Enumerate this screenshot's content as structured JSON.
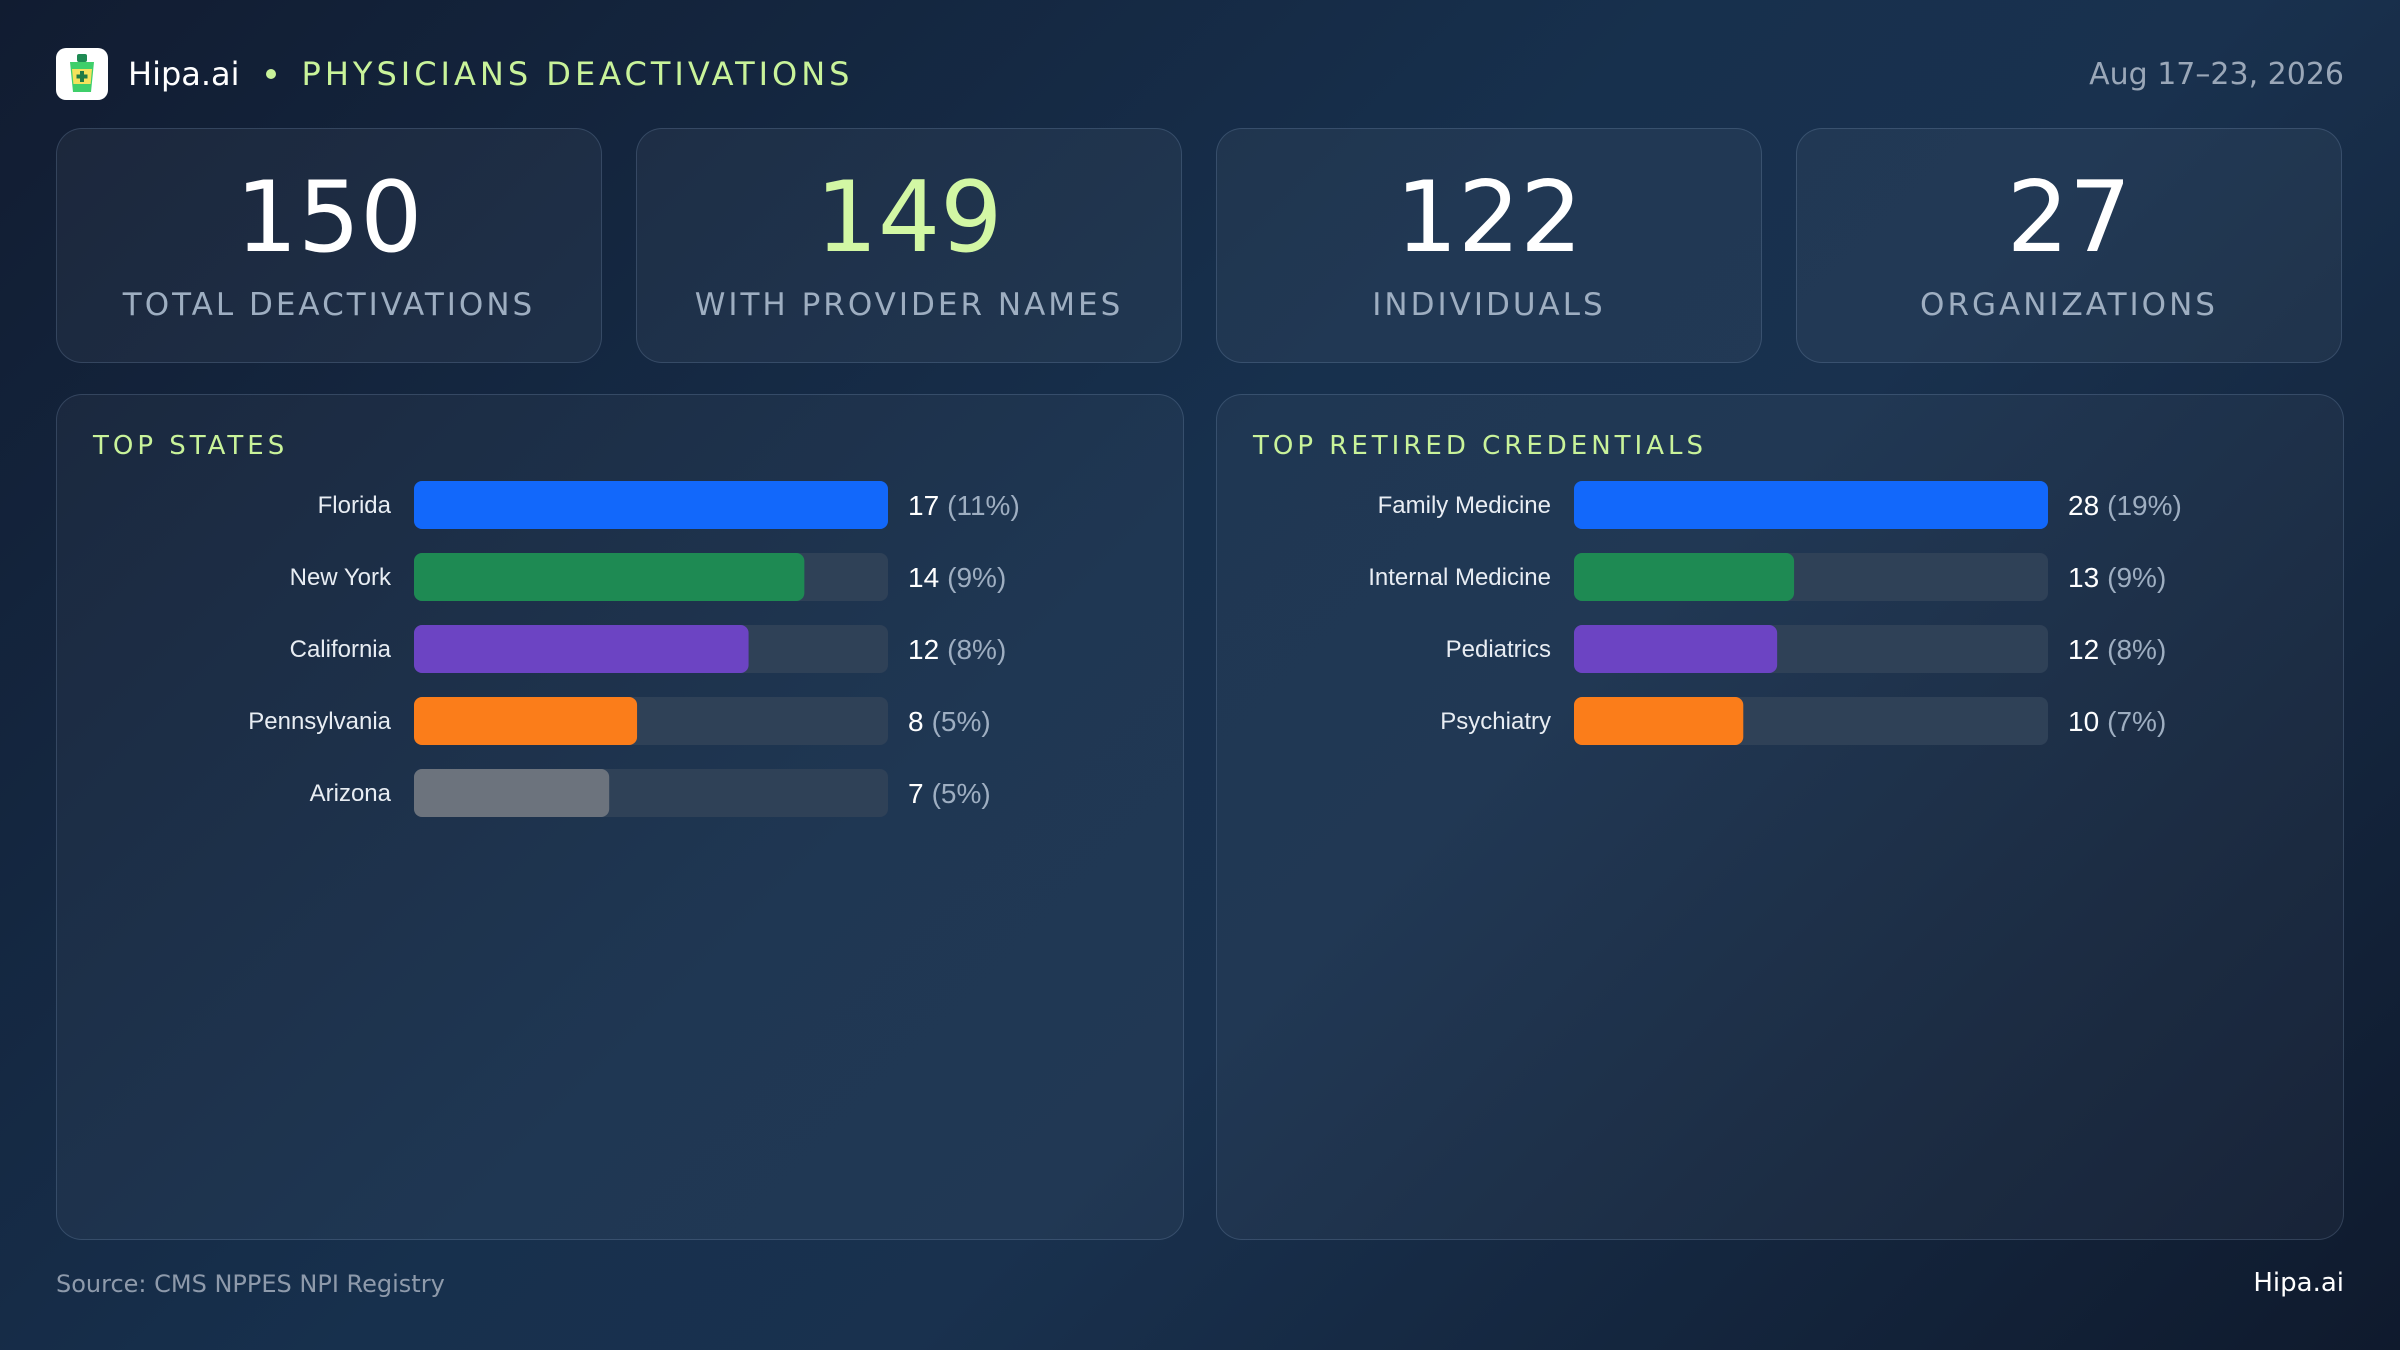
{
  "header": {
    "brand": "Hipa.ai",
    "title": "PHYSICIANS DEACTIVATIONS",
    "date_range": "Aug 17–23, 2026",
    "logo_icon": "medical-cup-icon"
  },
  "kpis": [
    {
      "value": "150",
      "label": "TOTAL DEACTIVATIONS",
      "accent": false
    },
    {
      "value": "149",
      "label": "WITH PROVIDER NAMES",
      "accent": true
    },
    {
      "value": "122",
      "label": "INDIVIDUALS",
      "accent": false
    },
    {
      "value": "27",
      "label": "ORGANIZATIONS",
      "accent": false
    }
  ],
  "panels": {
    "states": {
      "title": "TOP STATES"
    },
    "credentials": {
      "title": "TOP RETIRED CREDENTIALS"
    }
  },
  "colors": {
    "accent": "#c9f39a",
    "track": "#2f4157",
    "bar_colors": [
      "#1268fb",
      "#1e8a53",
      "#6c44c3",
      "#fb7d1a",
      "#6c737d"
    ]
  },
  "chart_data": [
    {
      "type": "bar",
      "orientation": "horizontal",
      "title": "TOP STATES",
      "categories": [
        "Florida",
        "New York",
        "California",
        "Pennsylvania",
        "Arizona"
      ],
      "values": [
        17,
        14,
        12,
        8,
        7
      ],
      "value_labels": [
        "17",
        "14",
        "12",
        "8",
        "7"
      ],
      "percent_labels": [
        "(11%)",
        "(9%)",
        "(8%)",
        "(5%)",
        "(5%)"
      ],
      "xlim": [
        0,
        17
      ]
    },
    {
      "type": "bar",
      "orientation": "horizontal",
      "title": "TOP RETIRED CREDENTIALS",
      "categories": [
        "Family Medicine",
        "Internal Medicine",
        "Pediatrics",
        "Psychiatry"
      ],
      "values": [
        28,
        13,
        12,
        10
      ],
      "value_labels": [
        "28",
        "13",
        "12",
        "10"
      ],
      "percent_labels": [
        "(19%)",
        "(9%)",
        "(8%)",
        "(7%)"
      ],
      "xlim": [
        0,
        28
      ]
    }
  ],
  "footer": {
    "source": "Source: CMS NPPES NPI Registry",
    "brand": "Hipa.ai"
  }
}
